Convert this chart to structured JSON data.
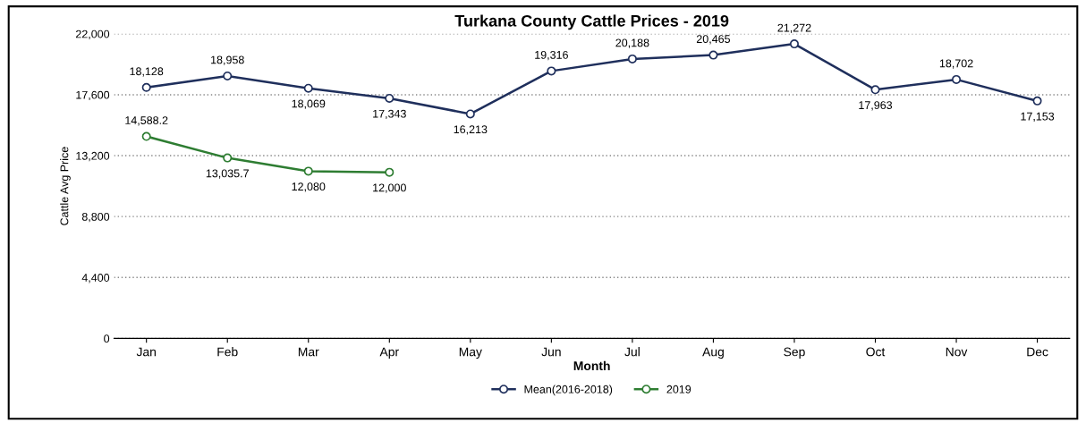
{
  "chart_data": {
    "type": "line",
    "title": "Turkana County Cattle Prices - 2019",
    "xlabel": "Month",
    "ylabel": "Cattle Avg Price",
    "categories": [
      "Jan",
      "Feb",
      "Mar",
      "Apr",
      "May",
      "Jun",
      "Jul",
      "Aug",
      "Sep",
      "Oct",
      "Nov",
      "Dec"
    ],
    "series": [
      {
        "name": "Mean(2016-2018)",
        "color": "#1f2f5c",
        "values": [
          18128,
          18958,
          18069,
          17343,
          16213,
          19316,
          20188,
          20465,
          21272,
          17963,
          18702,
          17153
        ],
        "value_labels": [
          "18,128",
          "18,958",
          "18,069",
          "17,343",
          "16,213",
          "19,316",
          "20,188",
          "20,465",
          "21,272",
          "17,963",
          "18,702",
          "17,153"
        ]
      },
      {
        "name": "2019",
        "color": "#2e7d32",
        "values": [
          14588.2,
          13035.7,
          12080,
          12000,
          null,
          null,
          null,
          null,
          null,
          null,
          null,
          null
        ],
        "value_labels": [
          "14,588.2",
          "13,035.7",
          "12,080",
          "12,000",
          null,
          null,
          null,
          null,
          null,
          null,
          null,
          null
        ]
      }
    ],
    "ylim": [
      0,
      22000
    ],
    "yticks": [
      {
        "value": 0,
        "label": "0"
      },
      {
        "value": 4400,
        "label": "4,400"
      },
      {
        "value": 8800,
        "label": "8,800"
      },
      {
        "value": 13200,
        "label": "13,200"
      },
      {
        "value": 17600,
        "label": "17,600"
      },
      {
        "value": 22000,
        "label": "22,000"
      }
    ],
    "grid": "y",
    "legend": "bottom",
    "marker": "circle",
    "line_style": "solid"
  }
}
